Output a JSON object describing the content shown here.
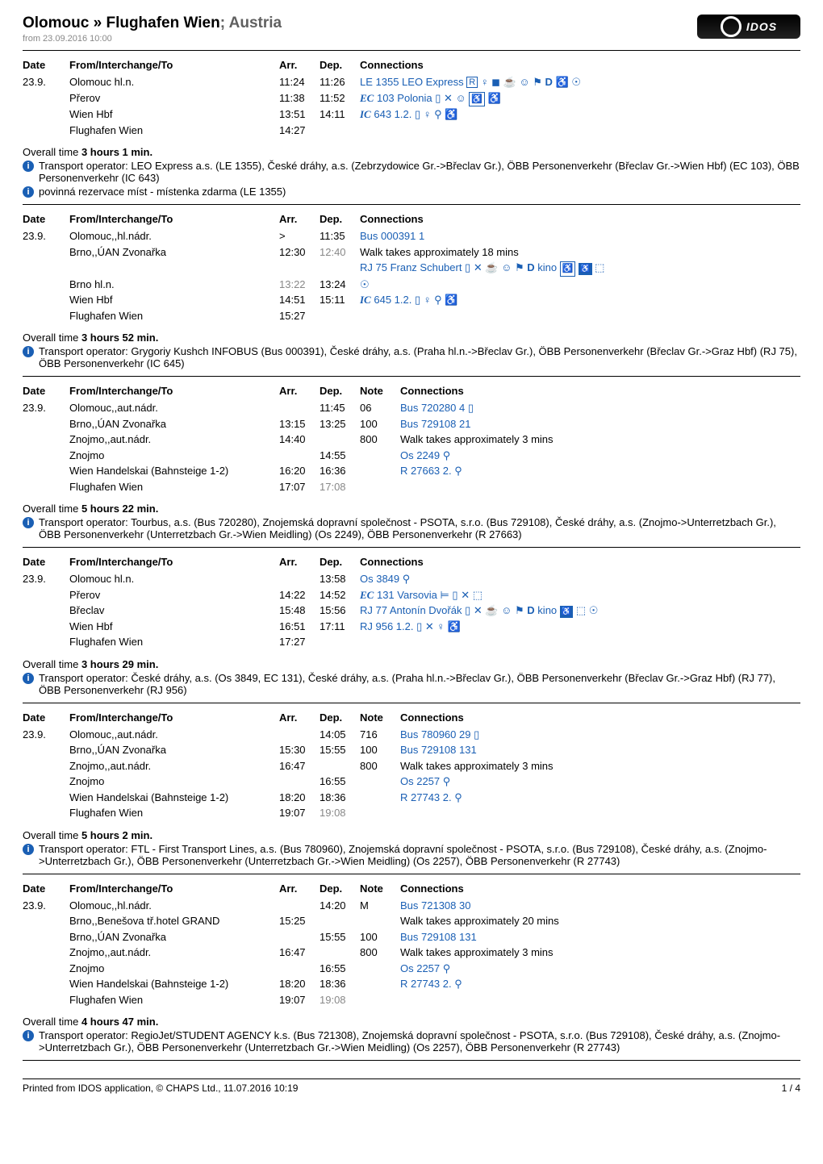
{
  "colors": {
    "blue": "#1a5fb4",
    "grey": "#606060",
    "light_grey": "#888888",
    "hr": "#000000",
    "bg": "#ffffff"
  },
  "title": {
    "main": "Olomouc » Flughafen Wien",
    "suffix": "; Austria",
    "subtitle": "from 23.09.2016 10:00"
  },
  "logo_text": "IDOS",
  "section_headers": {
    "date": "Date",
    "from": "From/Interchange/To",
    "arr": "Arr.",
    "dep": "Dep.",
    "note": "Note",
    "conn": "Connections"
  },
  "overall_label": "Overall time ",
  "journeys": [
    {
      "date": "23.9.",
      "header_cols": [
        "Date",
        "From/Interchange/To",
        "Arr.",
        "Dep.",
        "Note",
        "Connections"
      ],
      "header_narrow": true,
      "rows": [
        {
          "station": "Olomouc hl.n.",
          "arr": "",
          "dep": "11:24",
          "dep_grey": false,
          "arr2": "11:26",
          "conn_html": "<span class='blue'>LE 1355 LEO Express <span class='box-R'>R</span> ♀ ◼ ☕ ☺ ⚑ <b>D</b> ♿ ☉</span>"
        },
        {
          "station": "Přerov",
          "arr": "11:38",
          "dep": "11:52",
          "conn_html": "<span class='blue svc-bold serif-bold'>EC</span> <span class='blue'>103 Polonia ▯ ✕ ☺ <span class='bike-box'>♿</span> ♿</span>"
        },
        {
          "station": "Wien Hbf",
          "arr": "13:51",
          "dep": "14:11",
          "conn_html": "<span class='blue svc-bold serif-bold'>IC</span> <span class='blue'>643 1.2. ▯ ♀ ⚲ ♿</span>"
        },
        {
          "station": "Flughafen Wien",
          "arr": "14:27",
          "dep": "",
          "conn_html": ""
        }
      ],
      "overall": "3 hours 1 min.",
      "infos": [
        "Transport operator: LEO Express a.s. (LE 1355), České dráhy, a.s. (Zebrzydowice Gr.->Břeclav Gr.), ÖBB Personenverkehr (Břeclav Gr.->Wien Hbf) (EC 103), ÖBB Personenverkehr (IC 643)",
        "povinná rezervace míst - místenka zdarma (LE 1355)"
      ]
    },
    {
      "date": "23.9.",
      "header_narrow": true,
      "rows": [
        {
          "station": "Olomouc,,hl.nádr.",
          "arr": ">",
          "dep": "11:35",
          "conn_html": "<span class='blue'>Bus 000391 1</span>"
        },
        {
          "station": "Brno,,ÚAN Zvonařka",
          "arr": "12:30",
          "dep": "12:40",
          "dep_grey": true,
          "conn_html": "Walk takes approximately 18 mins<br><span class='blue'>RJ 75 Franz Schubert ▯ ✕ ☕ ☺ ⚑ <b>D</b> kino <span class='bike-box'>♿</span> <span class='wc-box'>♿</span> ⬚</span>"
        },
        {
          "station": "Brno hl.n.",
          "arr": "13:22",
          "arr_grey": true,
          "dep": "13:24",
          "conn_html": "<span class='blue'>☉</span>"
        },
        {
          "station": "Wien Hbf",
          "arr": "14:51",
          "dep": "15:11",
          "conn_html": "<span class='blue svc-bold serif-bold'>IC</span> <span class='blue'>645 1.2. ▯ ♀ ⚲ ♿</span>"
        },
        {
          "station": "Flughafen Wien",
          "arr": "15:27",
          "dep": "",
          "conn_html": ""
        }
      ],
      "overall": "3 hours 52 min.",
      "infos": [
        "Transport operator: Grygoriy Kushch INFOBUS (Bus 000391), České dráhy, a.s. (Praha hl.n.->Břeclav Gr.), ÖBB Personenverkehr (Břeclav Gr.->Graz Hbf) (RJ 75), ÖBB Personenverkehr (IC 645)"
      ]
    },
    {
      "date": "23.9.",
      "has_note_col": true,
      "rows": [
        {
          "station": "Olomouc,,aut.nádr.",
          "arr": "",
          "dep": "11:45",
          "note": "06",
          "conn_html": "<span class='blue'>Bus 720280 4 ▯</span>"
        },
        {
          "station": "Brno,,ÚAN Zvonařka",
          "arr": "13:15",
          "dep": "13:25",
          "note": "100",
          "conn_html": "<span class='blue'>Bus 729108 21</span>"
        },
        {
          "station": "Znojmo,,aut.nádr.",
          "arr": "14:40",
          "dep": "",
          "note": "800",
          "conn_html": "Walk takes approximately 3 mins"
        },
        {
          "station": "Znojmo",
          "arr": "",
          "dep": "14:55",
          "note": "",
          "conn_html": "<span class='blue'>Os 2249 ⚲</span>"
        },
        {
          "station": "Wien Handelskai (Bahnsteige 1-2)",
          "arr": "16:20",
          "dep": "16:36",
          "note": "",
          "conn_html": "<span class='blue'>R 27663 2. ⚲</span>"
        },
        {
          "station": "Flughafen Wien",
          "arr": "17:07",
          "dep": "17:08",
          "dep_grey": true,
          "note": "",
          "conn_html": ""
        }
      ],
      "overall": "5 hours 22 min.",
      "infos": [
        "Transport operator: Tourbus, a.s. (Bus 720280), Znojemská dopravní společnost - PSOTA, s.r.o. (Bus 729108), České dráhy, a.s. (Znojmo->Unterretzbach Gr.), ÖBB Personenverkehr (Unterretzbach Gr.->Wien Meidling) (Os 2249), ÖBB Personenverkehr (R 27663)"
      ]
    },
    {
      "date": "23.9.",
      "header_narrow": true,
      "rows": [
        {
          "station": "Olomouc hl.n.",
          "arr": "",
          "dep": "13:58",
          "conn_html": "<span class='blue'>Os 3849 ⚲</span>"
        },
        {
          "station": "Přerov",
          "arr": "14:22",
          "dep": "14:52",
          "conn_html": "<span class='blue svc-bold serif-bold'>EC</span> <span class='blue'>131 Varsovia ⊨ ▯ ✕ ⬚</span>"
        },
        {
          "station": "Břeclav",
          "arr": "15:48",
          "dep": "15:56",
          "conn_html": "<span class='blue'>RJ 77 Antonín Dvořák ▯ ✕ ☕ ☺ ⚑ <b>D</b> kino <span class='wc-box'>♿</span> ⬚ ☉</span>"
        },
        {
          "station": "Wien Hbf",
          "arr": "16:51",
          "dep": "17:11",
          "conn_html": "<span class='blue'>RJ 956 1.2. ▯ ✕ ♀ ♿</span>"
        },
        {
          "station": "Flughafen Wien",
          "arr": "17:27",
          "dep": "",
          "conn_html": ""
        }
      ],
      "overall": "3 hours 29 min.",
      "infos": [
        "Transport operator: České dráhy, a.s. (Os 3849, EC 131), České dráhy, a.s. (Praha hl.n.->Břeclav Gr.), ÖBB Personenverkehr (Břeclav Gr.->Graz Hbf) (RJ 77), ÖBB Personenverkehr (RJ 956)"
      ]
    },
    {
      "date": "23.9.",
      "has_note_col": true,
      "rows": [
        {
          "station": "Olomouc,,aut.nádr.",
          "arr": "",
          "dep": "14:05",
          "note": "716",
          "conn_html": "<span class='blue'>Bus 780960 29 ▯</span>"
        },
        {
          "station": "Brno,,ÚAN Zvonařka",
          "arr": "15:30",
          "dep": "15:55",
          "note": "100",
          "conn_html": "<span class='blue'>Bus 729108 131</span>"
        },
        {
          "station": "Znojmo,,aut.nádr.",
          "arr": "16:47",
          "dep": "",
          "note": "800",
          "conn_html": "Walk takes approximately 3 mins"
        },
        {
          "station": "Znojmo",
          "arr": "",
          "dep": "16:55",
          "note": "",
          "conn_html": "<span class='blue'>Os 2257 ⚲</span>"
        },
        {
          "station": "Wien Handelskai (Bahnsteige 1-2)",
          "arr": "18:20",
          "dep": "18:36",
          "note": "",
          "conn_html": "<span class='blue'>R 27743 2. ⚲</span>"
        },
        {
          "station": "Flughafen Wien",
          "arr": "19:07",
          "dep": "19:08",
          "dep_grey": true,
          "note": "",
          "conn_html": ""
        }
      ],
      "overall": "5 hours 2 min.",
      "infos": [
        "Transport operator: FTL - First Transport Lines, a.s. (Bus 780960), Znojemská dopravní společnost - PSOTA, s.r.o. (Bus 729108), České dráhy, a.s. (Znojmo->Unterretzbach Gr.), ÖBB Personenverkehr (Unterretzbach Gr.->Wien Meidling) (Os 2257), ÖBB Personenverkehr (R 27743)"
      ]
    },
    {
      "date": "23.9.",
      "has_note_col": true,
      "rows": [
        {
          "station": "Olomouc,,hl.nádr.",
          "arr": "",
          "dep": "14:20",
          "note": "M",
          "conn_html": "<span class='blue'>Bus 721308 30</span>"
        },
        {
          "station": "Brno,,Benešova tř.hotel GRAND",
          "arr": "15:25",
          "dep": "",
          "note": "",
          "conn_html": "Walk takes approximately 20 mins"
        },
        {
          "station": "Brno,,ÚAN Zvonařka",
          "arr": "",
          "dep": "15:55",
          "note": "100",
          "conn_html": "<span class='blue'>Bus 729108 131</span>"
        },
        {
          "station": "Znojmo,,aut.nádr.",
          "arr": "16:47",
          "dep": "",
          "note": "800",
          "conn_html": "Walk takes approximately 3 mins"
        },
        {
          "station": "Znojmo",
          "arr": "",
          "dep": "16:55",
          "note": "",
          "conn_html": "<span class='blue'>Os 2257 ⚲</span>"
        },
        {
          "station": "Wien Handelskai (Bahnsteige 1-2)",
          "arr": "18:20",
          "dep": "18:36",
          "note": "",
          "conn_html": "<span class='blue'>R 27743 2. ⚲</span>"
        },
        {
          "station": "Flughafen Wien",
          "arr": "19:07",
          "dep": "19:08",
          "dep_grey": true,
          "note": "",
          "conn_html": ""
        }
      ],
      "overall": "4 hours 47 min.",
      "infos": [
        "Transport operator: RegioJet/STUDENT AGENCY k.s. (Bus 721308), Znojemská dopravní společnost - PSOTA, s.r.o. (Bus 729108), České dráhy, a.s. (Znojmo->Unterretzbach Gr.), ÖBB Personenverkehr (Unterretzbach Gr.->Wien Meidling) (Os 2257), ÖBB Personenverkehr (R 27743)"
      ]
    }
  ],
  "footer": {
    "left": "Printed from IDOS application, © CHAPS Ltd., 11.07.2016 10:19",
    "right": "1 / 4"
  }
}
